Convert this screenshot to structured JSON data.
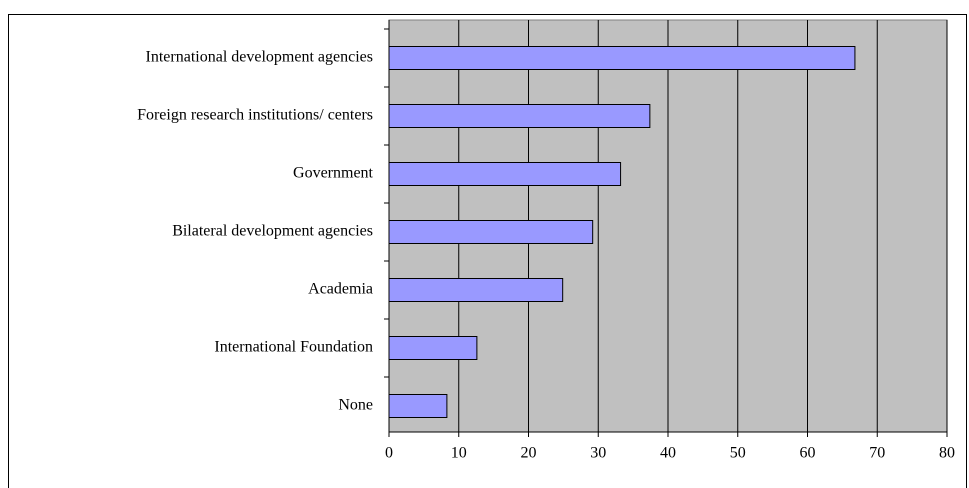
{
  "chart_data": {
    "type": "hbar",
    "categories": [
      "International development agencies",
      "Foreign research institutions/ centers",
      "Government",
      "Bilateral development agencies",
      "Academia",
      "International Foundation",
      "None"
    ],
    "values": [
      66.8,
      37.4,
      33.2,
      29.2,
      24.9,
      12.6,
      8.3
    ],
    "color": "#9999ff",
    "xlim": [
      0,
      80
    ],
    "xticks": [
      0,
      10,
      20,
      30,
      40,
      50,
      60,
      70,
      80
    ],
    "grid": true
  }
}
